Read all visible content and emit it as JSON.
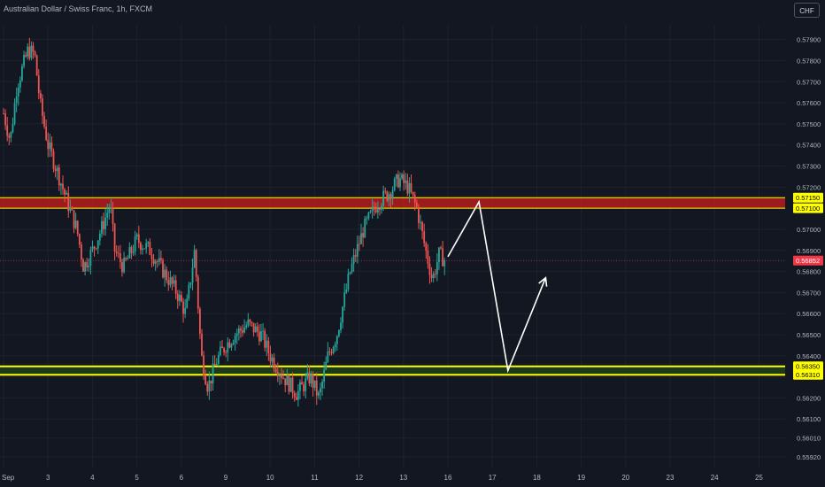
{
  "header": {
    "title": "Australian Dollar / Swiss Franc, 1h, FXCM",
    "currency_button": "CHF"
  },
  "colors": {
    "background": "#131722",
    "up": "#26a69a",
    "down": "#ef5350",
    "resistance_zone": "#b71c1c",
    "support_zone": "#1b3a1b",
    "line_highlight": "#ffff00",
    "last_price_bg": "#f23645",
    "annotation": "#ffffff"
  },
  "chart_data": {
    "type": "candlestick",
    "symbol": "AUD/CHF",
    "timeframe": "1h",
    "ylim": [
      0.5587,
      0.5797
    ],
    "y_ticks": [
      "0.57900",
      "0.57800",
      "0.57700",
      "0.57600",
      "0.57500",
      "0.57400",
      "0.57300",
      "0.57200",
      "0.57100",
      "0.57000",
      "0.56900",
      "0.56800",
      "0.56700",
      "0.56600",
      "0.56500",
      "0.56400",
      "0.56300",
      "0.56200",
      "0.56100",
      "0.56010",
      "0.55920"
    ],
    "x_ticks": [
      {
        "label": "Sep",
        "session": 0
      },
      {
        "label": "3",
        "session": 1
      },
      {
        "label": "4",
        "session": 2
      },
      {
        "label": "5",
        "session": 3
      },
      {
        "label": "6",
        "session": 4
      },
      {
        "label": "9",
        "session": 5
      },
      {
        "label": "10",
        "session": 6
      },
      {
        "label": "11",
        "session": 7
      },
      {
        "label": "12",
        "session": 8
      },
      {
        "label": "13",
        "session": 9
      },
      {
        "label": "16",
        "session": 10
      },
      {
        "label": "17",
        "session": 11
      },
      {
        "label": "18",
        "session": 12
      },
      {
        "label": "19",
        "session": 13
      },
      {
        "label": "20",
        "session": 14
      },
      {
        "label": "23",
        "session": 15
      },
      {
        "label": "24",
        "session": 16
      },
      {
        "label": "25",
        "session": 17
      }
    ],
    "price_path": [
      [
        0.0,
        0.5755
      ],
      [
        0.15,
        0.5742
      ],
      [
        0.3,
        0.5768
      ],
      [
        0.55,
        0.5785
      ],
      [
        0.7,
        0.5783
      ],
      [
        0.82,
        0.576
      ],
      [
        1.0,
        0.574
      ],
      [
        1.2,
        0.5728
      ],
      [
        1.45,
        0.5712
      ],
      [
        1.65,
        0.57
      ],
      [
        1.8,
        0.5682
      ],
      [
        2.0,
        0.569
      ],
      [
        2.2,
        0.57
      ],
      [
        2.4,
        0.5712
      ],
      [
        2.5,
        0.569
      ],
      [
        2.7,
        0.5682
      ],
      [
        3.0,
        0.5695
      ],
      [
        3.3,
        0.569
      ],
      [
        3.6,
        0.568
      ],
      [
        3.9,
        0.567
      ],
      [
        4.1,
        0.566
      ],
      [
        4.3,
        0.569
      ],
      [
        4.45,
        0.564
      ],
      [
        4.6,
        0.5625
      ],
      [
        4.8,
        0.5638
      ],
      [
        5.0,
        0.5645
      ],
      [
        5.2,
        0.565
      ],
      [
        5.5,
        0.5655
      ],
      [
        5.8,
        0.565
      ],
      [
        6.0,
        0.564
      ],
      [
        6.3,
        0.563
      ],
      [
        6.6,
        0.5622
      ],
      [
        6.9,
        0.563
      ],
      [
        7.1,
        0.562
      ],
      [
        7.3,
        0.564
      ],
      [
        7.5,
        0.565
      ],
      [
        7.8,
        0.568
      ],
      [
        8.1,
        0.57
      ],
      [
        8.4,
        0.5712
      ],
      [
        8.7,
        0.5718
      ],
      [
        8.9,
        0.5724
      ],
      [
        9.1,
        0.572
      ],
      [
        9.3,
        0.571
      ],
      [
        9.5,
        0.569
      ],
      [
        9.65,
        0.5676
      ],
      [
        9.8,
        0.5688
      ],
      [
        9.95,
        0.5685
      ]
    ],
    "zones": [
      {
        "name": "resistance",
        "from": 0.571,
        "to": 0.5715
      },
      {
        "name": "support",
        "from": 0.5631,
        "to": 0.5635
      }
    ],
    "level_labels": [
      "0.57150",
      "0.57100",
      "0.56350",
      "0.56310"
    ],
    "last_price": {
      "value": 0.56852,
      "label": "0.56852"
    },
    "projection_path": [
      {
        "session": 10.0,
        "price": 0.5687
      },
      {
        "session": 10.7,
        "price": 0.5713
      },
      {
        "session": 11.35,
        "price": 0.5633
      },
      {
        "session": 12.2,
        "price": 0.5677
      }
    ]
  }
}
